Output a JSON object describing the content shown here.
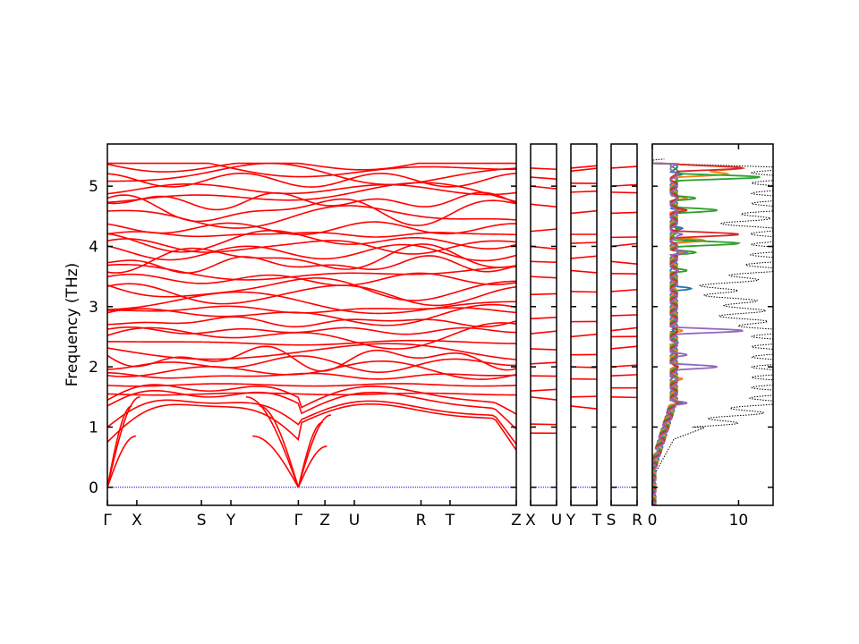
{
  "chart_data": {
    "type": "line",
    "ylabel": "Frequency (THz)",
    "ylim": [
      -0.3,
      5.7
    ],
    "y_ticks": [
      0,
      1,
      2,
      3,
      4,
      5
    ],
    "zero_line_color": "#0000ff",
    "band_color": "#ff0000",
    "band_panels": [
      {
        "name": "band-panel-main",
        "x_ticks": [
          {
            "label": "Γ",
            "x": 0.0
          },
          {
            "label": "X",
            "x": 0.072
          },
          {
            "label": "S",
            "x": 0.23
          },
          {
            "label": "Y",
            "x": 0.302
          },
          {
            "label": "Γ",
            "x": 0.467
          },
          {
            "label": "Z",
            "x": 0.532
          },
          {
            "label": "U",
            "x": 0.604
          },
          {
            "label": "R",
            "x": 0.767
          },
          {
            "label": "T",
            "x": 0.838
          },
          {
            "label": "Z",
            "x": 1.0
          }
        ],
        "flat_levels": [
          1.5,
          2.0,
          2.5,
          2.8,
          3.3,
          3.75,
          4.05,
          4.25,
          4.55,
          4.75,
          5.15,
          5.3
        ]
      },
      {
        "name": "band-panel-x-u",
        "x_ticks": [
          {
            "label": "X",
            "x": 0.0
          },
          {
            "label": "U",
            "x": 1.0
          }
        ],
        "levels": [
          0.9,
          1.05,
          1.5,
          1.6,
          1.85,
          2.05,
          2.3,
          2.55,
          2.8,
          3.2,
          3.5,
          3.75,
          4.0,
          4.25,
          4.7,
          5.0,
          5.15,
          5.3
        ]
      },
      {
        "name": "band-panel-y-t",
        "x_ticks": [
          {
            "label": "Y",
            "x": 0.0
          },
          {
            "label": "T",
            "x": 1.0
          }
        ],
        "levels": [
          1.35,
          1.5,
          1.8,
          2.0,
          2.2,
          2.5,
          2.75,
          3.25,
          3.6,
          3.8,
          4.05,
          4.2,
          4.55,
          4.9,
          5.05,
          5.25,
          5.3
        ]
      },
      {
        "name": "band-panel-s-r",
        "x_ticks": [
          {
            "label": "S",
            "x": 0.0
          },
          {
            "label": "R",
            "x": 1.0
          }
        ],
        "levels": [
          1.5,
          1.65,
          1.85,
          2.0,
          2.3,
          2.5,
          2.6,
          2.85,
          3.25,
          3.55,
          3.75,
          4.0,
          4.15,
          4.55,
          4.9,
          5.0,
          5.3
        ]
      }
    ],
    "dos_panel": {
      "xlim": [
        0,
        14
      ],
      "x_ticks": [
        0,
        10
      ],
      "total_dos_color": "#000000",
      "series": [
        {
          "color": "#1f77b4",
          "peaks": [
            [
              0.6,
              0.6
            ],
            [
              1.0,
              1.0
            ],
            [
              1.4,
              3.5
            ],
            [
              1.8,
              2.0
            ],
            [
              2.0,
              3.0
            ],
            [
              2.4,
              2.8
            ],
            [
              2.6,
              2.5
            ],
            [
              3.0,
              2.0
            ],
            [
              3.3,
              4.5
            ],
            [
              3.6,
              2.0
            ],
            [
              3.9,
              3.0
            ],
            [
              4.1,
              5.0
            ],
            [
              4.3,
              3.5
            ],
            [
              4.6,
              3.0
            ],
            [
              4.8,
              4.0
            ],
            [
              5.2,
              3.5
            ],
            [
              5.35,
              1.0
            ]
          ]
        },
        {
          "color": "#ff7f0e",
          "peaks": [
            [
              0.6,
              0.7
            ],
            [
              1.0,
              1.2
            ],
            [
              1.4,
              3.0
            ],
            [
              1.8,
              3.5
            ],
            [
              2.0,
              2.5
            ],
            [
              2.4,
              3.0
            ],
            [
              2.6,
              3.5
            ],
            [
              3.0,
              1.5
            ],
            [
              3.3,
              2.5
            ],
            [
              3.6,
              3.0
            ],
            [
              3.9,
              3.5
            ],
            [
              4.1,
              6.0
            ],
            [
              4.3,
              2.5
            ],
            [
              4.6,
              3.5
            ],
            [
              4.8,
              4.0
            ],
            [
              5.2,
              8.5
            ],
            [
              5.3,
              10.0
            ],
            [
              5.35,
              1.0
            ]
          ]
        },
        {
          "color": "#2ca02c",
          "peaks": [
            [
              0.6,
              0.5
            ],
            [
              1.0,
              1.0
            ],
            [
              1.4,
              3.2
            ],
            [
              1.8,
              2.5
            ],
            [
              2.0,
              2.0
            ],
            [
              2.4,
              2.0
            ],
            [
              2.6,
              2.0
            ],
            [
              3.0,
              1.0
            ],
            [
              3.3,
              2.0
            ],
            [
              3.6,
              4.0
            ],
            [
              3.9,
              5.0
            ],
            [
              4.05,
              10.0
            ],
            [
              4.3,
              3.0
            ],
            [
              4.6,
              7.5
            ],
            [
              4.8,
              5.0
            ],
            [
              5.15,
              12.5
            ],
            [
              5.35,
              1.0
            ]
          ]
        },
        {
          "color": "#d62728",
          "peaks": [
            [
              0.6,
              0.5
            ],
            [
              1.0,
              1.0
            ],
            [
              1.4,
              3.0
            ],
            [
              1.8,
              2.5
            ],
            [
              2.0,
              3.0
            ],
            [
              2.4,
              2.5
            ],
            [
              2.6,
              2.5
            ],
            [
              3.0,
              1.5
            ],
            [
              3.3,
              2.0
            ],
            [
              3.6,
              3.0
            ],
            [
              3.9,
              4.0
            ],
            [
              4.2,
              10.0
            ],
            [
              4.4,
              2.5
            ],
            [
              4.6,
              4.0
            ],
            [
              4.8,
              3.0
            ],
            [
              5.3,
              10.0
            ],
            [
              5.35,
              1.0
            ]
          ]
        },
        {
          "color": "#9467bd",
          "peaks": [
            [
              0.6,
              0.7
            ],
            [
              1.0,
              1.5
            ],
            [
              1.4,
              4.0
            ],
            [
              1.8,
              3.0
            ],
            [
              2.0,
              7.5
            ],
            [
              2.2,
              4.0
            ],
            [
              2.4,
              3.0
            ],
            [
              2.6,
              10.5
            ],
            [
              2.9,
              2.0
            ],
            [
              3.1,
              1.5
            ],
            [
              3.3,
              2.0
            ],
            [
              3.6,
              3.0
            ],
            [
              3.9,
              4.0
            ],
            [
              4.2,
              3.5
            ],
            [
              4.6,
              2.0
            ],
            [
              5.3,
              1.0
            ]
          ]
        }
      ],
      "total_dos": [
        [
          -0.3,
          0.0
        ],
        [
          0.2,
          0.2
        ],
        [
          0.8,
          2.5
        ],
        [
          1.2,
          10.0
        ],
        [
          1.5,
          14.0
        ],
        [
          1.8,
          14.0
        ],
        [
          2.2,
          14.0
        ],
        [
          2.6,
          14.0
        ],
        [
          2.8,
          10.0
        ],
        [
          3.0,
          11.0
        ],
        [
          3.3,
          7.0
        ],
        [
          3.6,
          13.0
        ],
        [
          3.9,
          14.0
        ],
        [
          4.2,
          14.0
        ],
        [
          4.4,
          10.0
        ],
        [
          4.6,
          14.0
        ],
        [
          4.8,
          14.0
        ],
        [
          5.0,
          14.0
        ],
        [
          5.2,
          14.0
        ],
        [
          5.3,
          14.0
        ],
        [
          5.4,
          0.0
        ]
      ]
    }
  }
}
